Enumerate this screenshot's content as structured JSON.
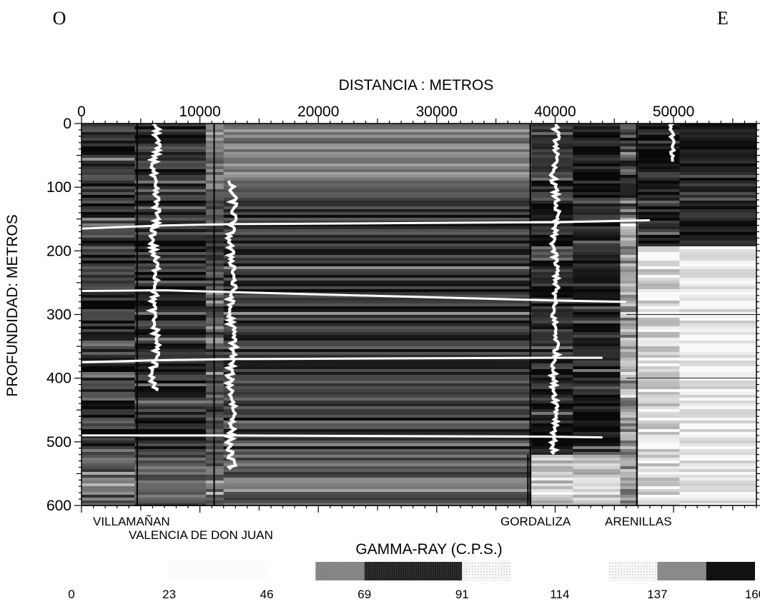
{
  "corner_labels": {
    "left": "O",
    "right": "E"
  },
  "chart_data": {
    "type": "heatmap",
    "xlabel": "DISTANCIA : METROS",
    "ylabel": "PROFUNDIDAD: METROS",
    "xlim": [
      0,
      57000
    ],
    "ylim": [
      0,
      600
    ],
    "y_inverted": true,
    "x_ticks": [
      0,
      10000,
      20000,
      30000,
      40000,
      50000
    ],
    "x_tick_labels": [
      "0",
      "10000",
      "20000",
      "30000",
      "40000",
      "50000"
    ],
    "y_ticks": [
      0,
      100,
      200,
      300,
      400,
      500,
      600
    ],
    "y_tick_labels": [
      "0",
      "100",
      "200",
      "300",
      "400",
      "500",
      "600"
    ],
    "wells": [
      {
        "name": "VILLAMAÑAN",
        "x": 4500
      },
      {
        "name": "VALENCIA DE DON JUAN",
        "x": 10500
      },
      {
        "name": "GORDALIZA",
        "x": 38000
      },
      {
        "name": "ARENILLAS",
        "x": 47000
      }
    ],
    "legend": {
      "title": "GAMMA-RAY (C.P.S.)",
      "tick_labels": [
        "0",
        "23",
        "46",
        "69",
        "91",
        "114",
        "137",
        "160"
      ],
      "class_shades": [
        "#ffffff",
        "#ffffff",
        "#f2f2f2",
        "#7a7a7a",
        "#141414",
        "#bdbdbd",
        "#efefef",
        "#8a8a8a"
      ],
      "position": "bottom"
    }
  }
}
